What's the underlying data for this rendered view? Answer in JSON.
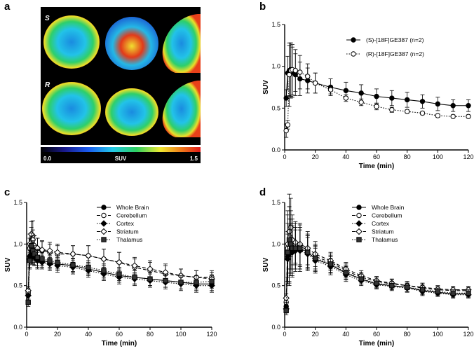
{
  "panel_labels": {
    "a": "a",
    "b": "b",
    "c": "c",
    "d": "d"
  },
  "images": {
    "row_labels": [
      "S",
      "R"
    ],
    "colorbar": {
      "min_label": "0.0",
      "label": "SUV",
      "max_label": "1.5"
    }
  },
  "chart_data": [
    {
      "id": "b",
      "type": "line",
      "xlabel": "Time (min)",
      "ylabel": "SUV",
      "xlim": [
        0,
        120
      ],
      "ylim": [
        0,
        1.5
      ],
      "xticks": [
        0,
        20,
        40,
        60,
        80,
        100,
        120
      ],
      "yticks": [
        0.0,
        0.5,
        1.0,
        1.5
      ],
      "legend_position": "top-right",
      "x": [
        1,
        2,
        3,
        4,
        5,
        7,
        10,
        15,
        20,
        30,
        40,
        50,
        60,
        70,
        80,
        90,
        100,
        110,
        120
      ],
      "series": [
        {
          "name": "(S)-[18F]GE387 (n=2)",
          "marker": "filled-circle",
          "line": "solid",
          "values": [
            0.62,
            0.92,
            0.95,
            0.96,
            0.93,
            0.9,
            0.85,
            0.83,
            0.8,
            0.75,
            0.71,
            0.68,
            0.64,
            0.62,
            0.6,
            0.58,
            0.55,
            0.53,
            0.53
          ],
          "errors": [
            0.1,
            0.2,
            0.3,
            0.32,
            0.3,
            0.25,
            0.2,
            0.15,
            0.12,
            0.1,
            0.1,
            0.1,
            0.09,
            0.09,
            0.09,
            0.08,
            0.08,
            0.07,
            0.07
          ]
        },
        {
          "name": "(R)-[18F]GE387 (n=2)",
          "marker": "open-circle",
          "line": "dotted",
          "values": [
            0.23,
            0.3,
            0.9,
            0.95,
            0.96,
            0.95,
            0.93,
            0.88,
            0.8,
            0.72,
            0.62,
            0.57,
            0.52,
            0.48,
            0.46,
            0.44,
            0.41,
            0.4,
            0.4
          ],
          "errors": [
            0.08,
            0.05,
            0.38,
            0.33,
            0.3,
            0.25,
            0.2,
            0.15,
            0.12,
            0.05,
            0.04,
            0.04,
            0.04,
            0.03,
            0.02,
            0.02,
            0.02,
            0.02,
            0.02
          ]
        }
      ]
    },
    {
      "id": "c",
      "type": "line",
      "xlabel": "Time (min)",
      "ylabel": "SUV",
      "xlim": [
        0,
        120
      ],
      "ylim": [
        0,
        1.5
      ],
      "xticks": [
        0,
        20,
        40,
        60,
        80,
        100,
        120
      ],
      "yticks": [
        0.0,
        0.5,
        1.0,
        1.5
      ],
      "legend_position": "top-right",
      "x": [
        1,
        2,
        3,
        4,
        5,
        7,
        10,
        15,
        20,
        30,
        40,
        50,
        60,
        70,
        80,
        90,
        100,
        110,
        120
      ],
      "series": [
        {
          "name": "Whole Brain",
          "marker": "filled-circle",
          "line": "solid",
          "values": [
            0.4,
            0.85,
            0.92,
            0.88,
            0.85,
            0.82,
            0.8,
            0.78,
            0.76,
            0.74,
            0.7,
            0.66,
            0.62,
            0.6,
            0.58,
            0.56,
            0.54,
            0.52,
            0.52
          ],
          "errors": [
            0.05,
            0.1,
            0.12,
            0.12,
            0.1,
            0.1,
            0.08,
            0.08,
            0.08,
            0.08,
            0.08,
            0.08,
            0.08,
            0.08,
            0.08,
            0.08,
            0.08,
            0.08,
            0.08
          ]
        },
        {
          "name": "Cerebellum",
          "marker": "open-circle",
          "line": "dashed",
          "values": [
            0.42,
            0.95,
            1.05,
            1.1,
            0.98,
            0.95,
            0.92,
            0.9,
            0.88,
            0.88,
            0.86,
            0.82,
            0.78,
            0.72,
            0.68,
            0.64,
            0.62,
            0.6,
            0.6
          ],
          "errors": [
            0.05,
            0.12,
            0.15,
            0.18,
            0.12,
            0.12,
            0.12,
            0.1,
            0.1,
            0.1,
            0.12,
            0.12,
            0.12,
            0.1,
            0.1,
            0.1,
            0.08,
            0.08,
            0.08
          ]
        },
        {
          "name": "Cortex",
          "marker": "filled-diamond",
          "line": "dotted",
          "values": [
            0.38,
            0.82,
            0.88,
            0.86,
            0.84,
            0.8,
            0.78,
            0.76,
            0.74,
            0.72,
            0.68,
            0.64,
            0.6,
            0.58,
            0.56,
            0.54,
            0.52,
            0.5,
            0.5
          ],
          "errors": [
            0.05,
            0.1,
            0.12,
            0.1,
            0.1,
            0.1,
            0.08,
            0.08,
            0.08,
            0.08,
            0.08,
            0.08,
            0.08,
            0.08,
            0.08,
            0.08,
            0.08,
            0.08,
            0.08
          ]
        },
        {
          "name": "Striatum",
          "marker": "open-diamond",
          "line": "dashed",
          "values": [
            0.44,
            1.0,
            1.12,
            1.05,
            0.98,
            0.95,
            0.93,
            0.92,
            0.9,
            0.88,
            0.86,
            0.82,
            0.78,
            0.74,
            0.7,
            0.66,
            0.62,
            0.6,
            0.58
          ],
          "errors": [
            0.05,
            0.12,
            0.15,
            0.12,
            0.12,
            0.12,
            0.1,
            0.1,
            0.1,
            0.1,
            0.12,
            0.12,
            0.12,
            0.1,
            0.1,
            0.1,
            0.08,
            0.08,
            0.08
          ]
        },
        {
          "name": "Thalamus",
          "marker": "filled-square",
          "line": "dotted",
          "values": [
            0.3,
            0.8,
            0.98,
            0.92,
            0.88,
            0.84,
            0.82,
            0.8,
            0.78,
            0.75,
            0.72,
            0.68,
            0.64,
            0.6,
            0.58,
            0.56,
            0.54,
            0.54,
            0.55
          ],
          "errors": [
            0.05,
            0.1,
            0.15,
            0.12,
            0.1,
            0.1,
            0.08,
            0.08,
            0.08,
            0.08,
            0.08,
            0.08,
            0.08,
            0.08,
            0.08,
            0.08,
            0.08,
            0.08,
            0.08
          ]
        }
      ]
    },
    {
      "id": "d",
      "type": "line",
      "xlabel": "Time (min)",
      "ylabel": "SUV",
      "xlim": [
        0,
        120
      ],
      "ylim": [
        0,
        1.5
      ],
      "xticks": [
        0,
        20,
        40,
        60,
        80,
        100,
        120
      ],
      "yticks": [
        0.0,
        0.5,
        1.0,
        1.5
      ],
      "legend_position": "top-right",
      "x": [
        1,
        2,
        3,
        4,
        5,
        7,
        10,
        15,
        20,
        30,
        40,
        50,
        60,
        70,
        80,
        90,
        100,
        110,
        120
      ],
      "series": [
        {
          "name": "Whole Brain",
          "marker": "filled-circle",
          "line": "solid",
          "values": [
            0.25,
            0.85,
            0.9,
            0.95,
            0.92,
            0.95,
            0.95,
            0.9,
            0.82,
            0.75,
            0.65,
            0.58,
            0.52,
            0.5,
            0.48,
            0.44,
            0.42,
            0.4,
            0.4
          ],
          "errors": [
            0.05,
            0.3,
            0.4,
            0.3,
            0.3,
            0.25,
            0.25,
            0.2,
            0.15,
            0.1,
            0.08,
            0.06,
            0.05,
            0.05,
            0.05,
            0.05,
            0.04,
            0.04,
            0.04
          ]
        },
        {
          "name": "Cerebellum",
          "marker": "open-circle",
          "line": "dashed",
          "values": [
            0.3,
            0.95,
            1.0,
            1.05,
            1.0,
            1.0,
            0.98,
            0.92,
            0.85,
            0.78,
            0.68,
            0.6,
            0.55,
            0.52,
            0.5,
            0.47,
            0.45,
            0.44,
            0.44
          ],
          "errors": [
            0.05,
            0.4,
            0.45,
            0.35,
            0.3,
            0.25,
            0.25,
            0.2,
            0.15,
            0.1,
            0.08,
            0.06,
            0.05,
            0.05,
            0.05,
            0.05,
            0.04,
            0.04,
            0.04
          ]
        },
        {
          "name": "Cortex",
          "marker": "filled-diamond",
          "line": "dotted",
          "values": [
            0.22,
            0.82,
            0.88,
            0.92,
            0.9,
            0.92,
            0.92,
            0.88,
            0.8,
            0.73,
            0.63,
            0.56,
            0.51,
            0.49,
            0.47,
            0.43,
            0.41,
            0.39,
            0.39
          ],
          "errors": [
            0.05,
            0.3,
            0.35,
            0.3,
            0.3,
            0.25,
            0.25,
            0.2,
            0.15,
            0.1,
            0.08,
            0.06,
            0.05,
            0.05,
            0.05,
            0.05,
            0.04,
            0.04,
            0.04
          ]
        },
        {
          "name": "Striatum",
          "marker": "open-diamond",
          "line": "dashed",
          "values": [
            0.35,
            1.0,
            1.15,
            1.2,
            1.05,
            1.02,
            1.0,
            0.95,
            0.88,
            0.8,
            0.7,
            0.62,
            0.56,
            0.53,
            0.5,
            0.48,
            0.46,
            0.45,
            0.45
          ],
          "errors": [
            0.05,
            0.4,
            0.45,
            0.35,
            0.3,
            0.25,
            0.25,
            0.2,
            0.15,
            0.1,
            0.08,
            0.06,
            0.05,
            0.05,
            0.05,
            0.05,
            0.04,
            0.04,
            0.04
          ]
        },
        {
          "name": "Thalamus",
          "marker": "filled-square",
          "line": "dotted",
          "values": [
            0.2,
            0.9,
            1.05,
            1.0,
            0.95,
            0.95,
            0.95,
            0.9,
            0.83,
            0.76,
            0.66,
            0.58,
            0.53,
            0.5,
            0.48,
            0.45,
            0.43,
            0.41,
            0.41
          ],
          "errors": [
            0.05,
            0.35,
            0.4,
            0.3,
            0.3,
            0.25,
            0.25,
            0.2,
            0.15,
            0.1,
            0.08,
            0.06,
            0.05,
            0.05,
            0.05,
            0.05,
            0.04,
            0.04,
            0.04
          ]
        }
      ]
    }
  ]
}
